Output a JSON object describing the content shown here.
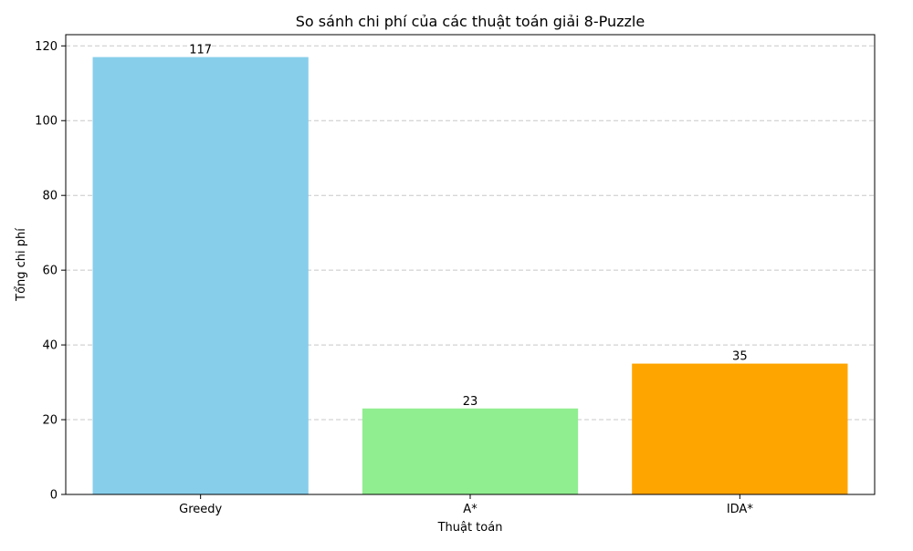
{
  "chart_data": {
    "type": "bar",
    "title": "So sánh chi phí của các thuật toán giải 8-Puzzle",
    "xlabel": "Thuật toán",
    "ylabel": "Tổng chi phí",
    "categories": [
      "Greedy",
      "A*",
      "IDA*"
    ],
    "values": [
      117,
      23,
      35
    ],
    "data_labels": [
      "117",
      "23",
      "35"
    ],
    "colors": [
      "#87ceeb",
      "#90ee90",
      "#ffa500"
    ],
    "ylim": [
      0,
      123
    ],
    "yticks": [
      0,
      20,
      40,
      60,
      80,
      100,
      120
    ],
    "grid": {
      "axis": "y",
      "style": "dashed",
      "color": "#c8c8c8"
    },
    "legend": "none"
  }
}
